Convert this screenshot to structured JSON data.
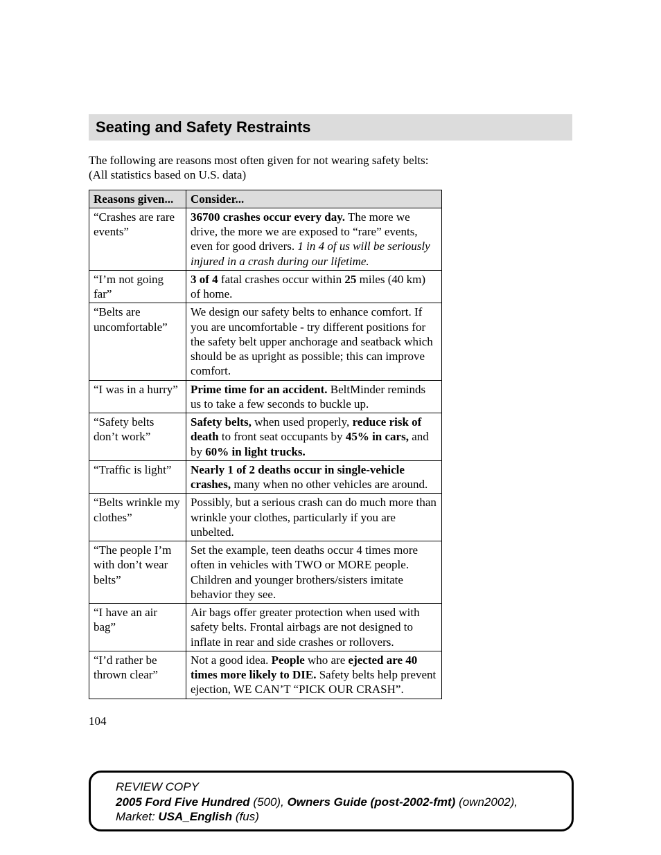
{
  "section_title": "Seating and Safety Restraints",
  "intro_line1": "The following are reasons most often given for not wearing safety belts:",
  "intro_line2": "(All statistics based on U.S. data)",
  "table": {
    "header": {
      "col1": "Reasons given...",
      "col2": "Consider..."
    },
    "rows": [
      {
        "reason": "“Crashes are rare events”",
        "consider_html": "<strong class='b'>36700 crashes occur every day.</strong> The more we drive, the more we are exposed to “rare” events, even for good drivers. <em class='i'>1 in 4 of us will be seriously injured in a crash during our lifetime.</em>"
      },
      {
        "reason": "“I’m not going far”",
        "consider_html": "<strong class='b'>3 of 4</strong> fatal crashes occur within <strong class='b'>25</strong> miles (40 km) of home."
      },
      {
        "reason": "“Belts are uncomfortable”",
        "consider_html": "We design our safety belts to enhance comfort. If you are uncomfortable - try different positions for the safety belt upper anchorage and seatback which should be as upright as possible; this can improve comfort."
      },
      {
        "reason": "“I was in a hurry”",
        "consider_html": "<strong class='b'>Prime time for an accident.</strong> BeltMinder reminds us to take a few seconds to buckle up."
      },
      {
        "reason": "“Safety belts don’t work”",
        "consider_html": "<strong class='b'>Safety belts,</strong> when used properly, <strong class='b'>reduce risk of death</strong> to front seat occupants by <strong class='b'>45% in cars,</strong> and by <strong class='b'>60% in light trucks.</strong>"
      },
      {
        "reason": "“Traffic is light”",
        "consider_html": "<strong class='b'>Nearly 1 of 2 deaths occur in single-vehicle crashes,</strong> many when no other vehicles are around."
      },
      {
        "reason": "“Belts wrinkle my clothes”",
        "consider_html": "Possibly, but a serious crash can do much more than wrinkle your clothes, particularly if you are unbelted."
      },
      {
        "reason": "“The people I’m with don’t wear belts”",
        "consider_html": "Set the example, teen deaths occur 4 times more often in vehicles with TWO or MORE people. Children and younger brothers/sisters imitate behavior they see."
      },
      {
        "reason": "“I have an air bag”",
        "consider_html": "Air bags offer greater protection when used with safety belts. Frontal airbags are not designed to inflate in rear and side crashes or rollovers."
      },
      {
        "reason": "“I’d rather be thrown clear”",
        "consider_html": "Not a good idea. <strong class='b'>People</strong> who are <strong class='b'>ejected are 40 times more likely to DIE.</strong> Safety belts help prevent ejection, WE CAN’T “PICK OUR CRASH”."
      }
    ]
  },
  "page_number": "104",
  "footer": {
    "review": "REVIEW COPY",
    "model_bold": "2005 Ford Five Hundred",
    "model_paren": "(500)",
    "sep1": ",",
    "guide_bold": "Owners Guide (post-2002-fmt)",
    "guide_paren": "(own2002)",
    "sep2": ",",
    "market_label": "Market:",
    "market_bold": "USA_English",
    "market_paren": "(fus)"
  }
}
